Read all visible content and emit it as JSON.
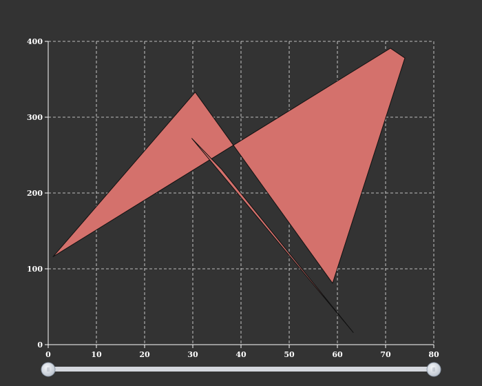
{
  "chart_data": {
    "type": "area",
    "title": "",
    "xlabel": "",
    "ylabel": "",
    "xlim": [
      0,
      80
    ],
    "ylim": [
      0,
      400
    ],
    "x_ticks": [
      "0",
      "10",
      "20",
      "30",
      "40",
      "50",
      "60",
      "70",
      "80"
    ],
    "y_ticks": [
      "0",
      "100",
      "200",
      "300",
      "400"
    ],
    "grid": true,
    "legend": "none",
    "series": [
      {
        "points": [
          {
            "x": 1,
            "y": 116
          },
          {
            "x": 30.5,
            "y": 333
          },
          {
            "x": 59,
            "y": 81
          },
          {
            "x": 74,
            "y": 378
          },
          {
            "x": 71,
            "y": 391
          },
          {
            "x": 1,
            "y": 116
          }
        ],
        "color": "#d4716c"
      },
      {
        "points": [
          {
            "x": 29.8,
            "y": 272
          },
          {
            "x": 63.3,
            "y": 16
          },
          {
            "x": 36,
            "y": 231
          },
          {
            "x": 29.8,
            "y": 272
          }
        ],
        "color": "#d4716c"
      }
    ],
    "slider": {
      "range": [
        0,
        80
      ],
      "start": 0,
      "end": 80,
      "handle_icon": "grip-lines-icon",
      "track_color": "#d5d8de"
    }
  }
}
